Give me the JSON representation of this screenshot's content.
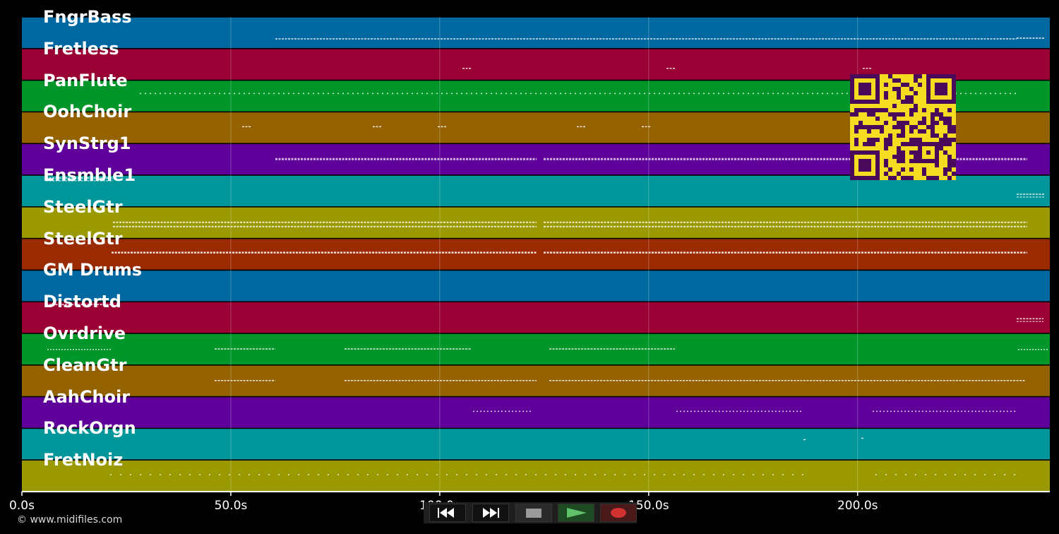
{
  "app": {
    "copyright": "© www.midifiles.com"
  },
  "timeline": {
    "min_seconds": 0,
    "max_seconds": 246,
    "ticks": [
      {
        "value": 0,
        "label": "0.0s"
      },
      {
        "value": 50,
        "label": "50.0s"
      },
      {
        "value": 100,
        "label": "100.0s"
      },
      {
        "value": 150,
        "label": "150.0s"
      },
      {
        "value": 200,
        "label": "200.0s"
      }
    ]
  },
  "tracks": [
    {
      "name": "FngrBass",
      "color": "#0068a0"
    },
    {
      "name": "Fretless",
      "color": "#9a0035"
    },
    {
      "name": "PanFlute",
      "color": "#00962a"
    },
    {
      "name": "OohChoir",
      "color": "#956200"
    },
    {
      "name": "SynStrg1",
      "color": "#60009a"
    },
    {
      "name": "Ensmble1",
      "color": "#00969a"
    },
    {
      "name": "SteelGtr",
      "color": "#9a9a00"
    },
    {
      "name": "SteelGtr",
      "color": "#9a2a00"
    },
    {
      "name": "GM Drums",
      "color": "#0068a0"
    },
    {
      "name": "Distortd",
      "color": "#9a0035"
    },
    {
      "name": "Ovrdrive",
      "color": "#00962a"
    },
    {
      "name": "CleanGtr",
      "color": "#956200"
    },
    {
      "name": "AahChoir",
      "color": "#60009a"
    },
    {
      "name": "RockOrgn",
      "color": "#00969a"
    },
    {
      "name": "FretNoiz",
      "color": "#9a9a00"
    }
  ],
  "transport": {
    "rewind": "rewind-icon",
    "forward": "fast-forward-icon",
    "stop": "stop-icon",
    "play": "play-icon",
    "record": "record-icon"
  },
  "overlay": {
    "qr": "qr-code-icon",
    "qr_color": "#f5dc20",
    "qr_dark": "#4a0a5a"
  }
}
